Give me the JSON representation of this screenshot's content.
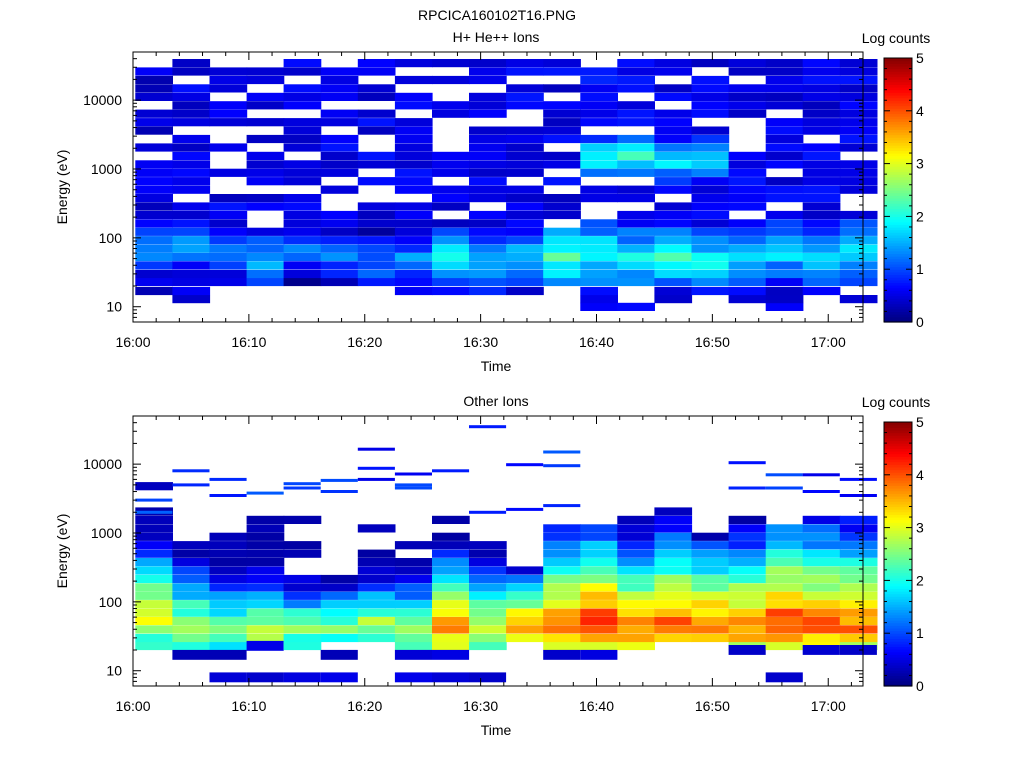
{
  "figure": {
    "title": "RPCICA160102T16.PNG"
  },
  "chart_data": [
    {
      "type": "heatmap",
      "title": "H+ He++ Ions",
      "xlabel": "Time",
      "ylabel": "Energy (eV)",
      "x_tick_labels": [
        "16:00",
        "16:10",
        "16:20",
        "16:30",
        "16:40",
        "16:50",
        "17:00"
      ],
      "x_range_minutes": [
        0,
        63
      ],
      "y_scale": "log",
      "y_range": [
        6,
        50000
      ],
      "y_tick_labels": [
        "10",
        "100",
        "1000",
        "10000"
      ],
      "colorbar": {
        "label": "Log counts",
        "range": [
          0,
          5
        ],
        "tick_labels": [
          "0",
          "1",
          "2",
          "3",
          "4",
          "5"
        ],
        "colormap": "jet"
      },
      "times_minutes": [
        0.2,
        3.4,
        6.6,
        9.8,
        13.0,
        16.2,
        19.4,
        22.6,
        25.8,
        29.0,
        32.2,
        35.4,
        38.6,
        41.8,
        45.0,
        48.2,
        51.4,
        54.6,
        57.8,
        61.0
      ],
      "energy_bins_eV": [
        10,
        13,
        17,
        23,
        30,
        40,
        53,
        70,
        93,
        123,
        163,
        216,
        287,
        380,
        504,
        668,
        886,
        1175,
        1558,
        2066,
        2739,
        3632,
        4815,
        6385,
        8466,
        11225,
        14884,
        19735,
        26168,
        34697
      ],
      "background_level_log_counts": [
        0.2,
        0.3,
        0.3,
        0.3,
        0.3,
        0.3,
        0.3,
        0.3,
        0.3,
        0.3,
        0.3,
        0.3,
        0.4,
        0.4,
        0.3,
        0.3,
        0.3,
        0.3,
        0.3,
        0.3
      ],
      "peak_energy_eV": [
        80,
        80,
        60,
        45,
        60,
        50,
        45,
        45,
        55,
        45,
        50,
        55,
        60,
        50,
        55,
        45,
        55,
        60,
        50,
        60
      ],
      "peak_log_counts": [
        1.5,
        1.4,
        1.3,
        1.6,
        1.2,
        1.2,
        1.3,
        1.4,
        1.8,
        1.6,
        1.7,
        2.2,
        2.0,
        1.9,
        2.1,
        1.9,
        1.8,
        1.7,
        1.8,
        1.8
      ],
      "secondary_peak_energy_eV": [
        0,
        0,
        0,
        0,
        0,
        0,
        0,
        0,
        0,
        0,
        0,
        0,
        1500,
        1500,
        1300,
        1400,
        0,
        0,
        0,
        0
      ],
      "secondary_peak_log_counts": [
        0,
        0,
        0,
        0,
        0,
        0,
        0,
        0,
        0,
        0,
        0,
        0,
        2.0,
        2.2,
        1.9,
        2.0,
        0,
        0,
        0,
        0
      ],
      "low_energy_cutoff_eV": [
        13,
        13,
        13,
        23,
        23,
        23,
        23,
        13,
        17,
        17,
        17,
        17,
        10,
        10,
        13,
        17,
        13,
        10,
        10,
        10
      ],
      "data_fill_fraction": 0.72
    },
    {
      "type": "heatmap",
      "title": "Other Ions",
      "xlabel": "Time",
      "ylabel": "Energy (eV)",
      "x_tick_labels": [
        "16:00",
        "16:10",
        "16:20",
        "16:30",
        "16:40",
        "16:50",
        "17:00"
      ],
      "x_range_minutes": [
        0,
        63
      ],
      "y_scale": "log",
      "y_range": [
        6,
        50000
      ],
      "y_tick_labels": [
        "10",
        "100",
        "1000",
        "10000"
      ],
      "colorbar": {
        "label": "Log counts",
        "range": [
          0,
          5
        ],
        "tick_labels": [
          "0",
          "1",
          "2",
          "3",
          "4",
          "5"
        ],
        "colormap": "jet"
      },
      "times_minutes": [
        0.2,
        3.4,
        6.6,
        9.8,
        13.0,
        16.2,
        19.4,
        22.6,
        25.8,
        29.0,
        32.2,
        35.4,
        38.6,
        41.8,
        45.0,
        48.2,
        51.4,
        54.6,
        57.8,
        61.0
      ],
      "energy_bins_eV": [
        10,
        13,
        17,
        23,
        30,
        40,
        53,
        70,
        93,
        123,
        163,
        216,
        287,
        380,
        504,
        668,
        886,
        1175,
        1558,
        2066,
        2739,
        3632,
        4815,
        6385,
        8466,
        11225,
        14884,
        19735,
        26168,
        34697
      ],
      "peak_energy_eV": [
        60,
        45,
        40,
        40,
        40,
        45,
        45,
        40,
        45,
        40,
        45,
        45,
        50,
        40,
        45,
        45,
        45,
        45,
        45,
        45
      ],
      "peak_log_counts": [
        3.3,
        2.8,
        2.6,
        3.0,
        2.6,
        2.6,
        2.8,
        2.8,
        3.8,
        3.1,
        3.6,
        4.0,
        4.2,
        3.8,
        4.1,
        4.0,
        3.9,
        4.2,
        4.0,
        3.9
      ],
      "spread_decades": [
        0.9,
        0.9,
        0.8,
        0.7,
        0.7,
        0.6,
        0.7,
        0.7,
        0.8,
        0.8,
        0.6,
        0.9,
        0.9,
        0.9,
        0.9,
        0.8,
        0.9,
        1.0,
        1.0,
        1.0
      ],
      "top_energy_eV": [
        5000,
        1500,
        1000,
        4000,
        1800,
        600,
        1500,
        1100,
        1600,
        1400,
        300,
        1500,
        1300,
        1700,
        2500,
        1100,
        3000,
        1500,
        1600,
        1700
      ],
      "low_energy_cutoff_eV": [
        23,
        23,
        23,
        30,
        23,
        30,
        30,
        23,
        23,
        23,
        30,
        23,
        23,
        23,
        30,
        30,
        23,
        23,
        23,
        23
      ],
      "sparse_high_energy_lines_eV": [
        [
          3000,
          2000
        ],
        [
          8000,
          5000
        ],
        [
          6000,
          3500
        ],
        [
          3800
        ],
        [
          5200,
          4500
        ],
        [
          5800,
          4000
        ],
        [
          16500,
          8700,
          6000
        ],
        [
          7200,
          5000,
          4500
        ],
        [
          8000
        ],
        [
          35000,
          2000
        ],
        [
          9800,
          2200
        ],
        [
          15000,
          9500,
          2500
        ],
        [],
        [],
        [],
        [],
        [
          10500,
          4500
        ],
        [
          7000,
          4500
        ],
        [
          7000,
          4000
        ],
        [
          6000,
          3500
        ]
      ],
      "low_energy_blobs_eV": [
        [
          0
        ],
        [
          17
        ],
        [
          17,
          8
        ],
        [
          23,
          8
        ],
        [
          8
        ],
        [
          17,
          8
        ],
        [],
        [
          17,
          8
        ],
        [
          17,
          8
        ],
        [
          8
        ],
        [],
        [
          17
        ],
        [
          17
        ],
        [],
        [],
        [],
        [
          20
        ],
        [
          8
        ],
        [
          20
        ],
        [
          20
        ]
      ]
    }
  ]
}
